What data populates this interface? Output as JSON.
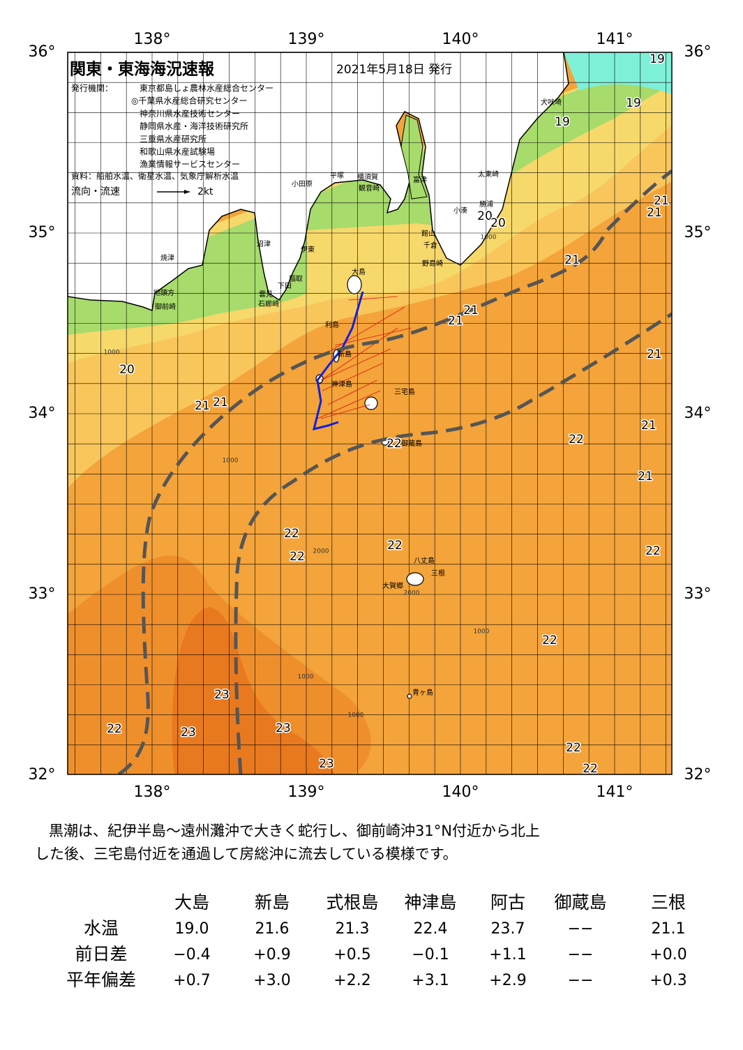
{
  "header": {
    "title": "関東・東海海況速報",
    "date": "2021年5月18日 発行",
    "issuer_label": "発行機関：",
    "issuers": [
      "東京都島しょ農林水産総合センター",
      "◎千葉県水産総合研究センター",
      "神奈川県水産技術センター",
      "静岡県水産・海洋技術研究所",
      "三重県水産研究所",
      "和歌山県水産試験場",
      "漁業情報サービスセンター"
    ],
    "source": "資料：船舶水温、衛星水温、気象庁解析水温",
    "legend_label": "流向・流速",
    "legend_speed": "2kt"
  },
  "map": {
    "lon_ticks": [
      "138°",
      "139°",
      "140°",
      "141°"
    ],
    "lat_ticks": [
      "36°",
      "35°",
      "34°",
      "33°",
      "32°"
    ],
    "temperature_labels": [
      "19",
      "19",
      "19",
      "21",
      "21",
      "20",
      "20",
      "21",
      "21",
      "21",
      "21",
      "20",
      "21",
      "21",
      "21",
      "22",
      "22",
      "21",
      "22",
      "22",
      "22",
      "22",
      "22",
      "23",
      "22",
      "23",
      "23",
      "22",
      "23",
      "22"
    ],
    "depth_labels": [
      "1000",
      "2000",
      "1000",
      "1000",
      "2000",
      "1000",
      "1000",
      "1000"
    ],
    "places": [
      "犬吠埼",
      "太東崎",
      "勝浦",
      "小湊",
      "富津",
      "横須賀",
      "観音崎",
      "平塚",
      "小田原",
      "館山",
      "千倉",
      "野島崎",
      "沼津",
      "伊東",
      "稲取",
      "下田",
      "雲見",
      "石廊崎",
      "焼津",
      "地頭方",
      "御前崎",
      "大島",
      "利島",
      "新島",
      "神津島",
      "三宅島",
      "御蔵島",
      "八丈島",
      "三根",
      "大賀郷",
      "青ヶ島"
    ]
  },
  "text": [
    "黒潮は、紀伊半島～遠州灘沖で大きく蛇行し、御前崎沖31°N付近から北上",
    "した後、三宅島付近を通過して房総沖に流去している模様です。"
  ],
  "table": {
    "columns": [
      "大島",
      "新島",
      "式根島",
      "神津島",
      "阿古",
      "御蔵島",
      "三根"
    ],
    "rows": [
      {
        "label": "水温",
        "cells": [
          "19.0",
          "21.6",
          "21.3",
          "22.4",
          "23.7",
          "−−",
          "21.1"
        ]
      },
      {
        "label": "前日差",
        "cells": [
          "−0.4",
          "+0.9",
          "+0.5",
          "−0.1",
          "+1.1",
          "−−",
          "+0.0"
        ]
      },
      {
        "label": "平年偏差",
        "cells": [
          "+0.7",
          "+3.0",
          "+2.2",
          "+3.1",
          "+2.9",
          "−−",
          "+0.3"
        ]
      }
    ]
  }
}
